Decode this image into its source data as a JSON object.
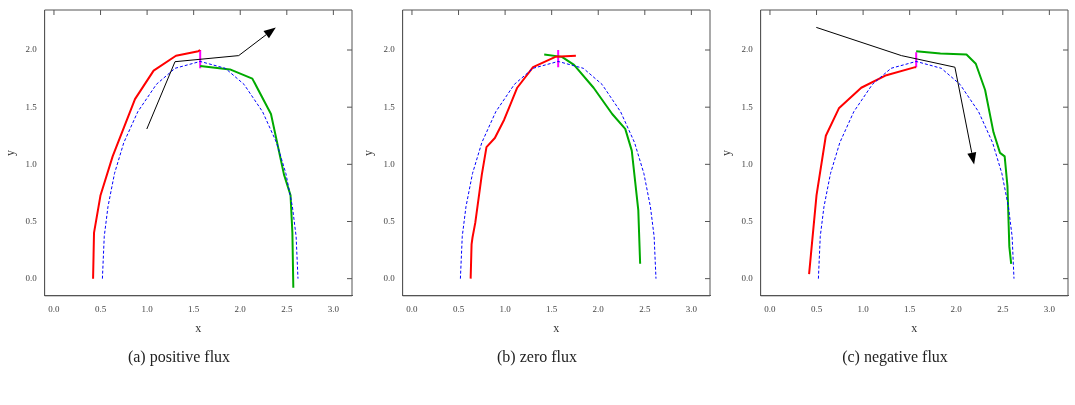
{
  "chart_data": [
    {
      "type": "line",
      "title": "(a)  positive flux",
      "xlabel": "x",
      "ylabel": "y",
      "xlim": [
        -0.1,
        3.2
      ],
      "ylim": [
        -0.15,
        2.35
      ],
      "xticks": [
        {
          "value": 0,
          "label": "0.0"
        },
        {
          "value": 0.5,
          "label": "0.5"
        },
        {
          "value": 1,
          "label": "1.0"
        },
        {
          "value": 1.5,
          "label": "1.5"
        },
        {
          "value": 2,
          "label": "2.0"
        },
        {
          "value": 2.5,
          "label": "2.5"
        },
        {
          "value": 3,
          "label": "3.0"
        }
      ],
      "yticks": [
        {
          "value": 0,
          "label": "0.0"
        },
        {
          "value": 0.5,
          "label": "0.5"
        },
        {
          "value": 1,
          "label": "1.0"
        },
        {
          "value": 1.5,
          "label": "1.5"
        },
        {
          "value": 2,
          "label": "2.0"
        }
      ],
      "grid": false,
      "legend": false,
      "series": [
        {
          "color": "#0000ff",
          "line_style": "dashed",
          "x": [
            0.52,
            0.54,
            0.58,
            0.65,
            0.75,
            0.9,
            1.1,
            1.3,
            1.57,
            1.84,
            2.04,
            2.24,
            2.39,
            2.49,
            2.56,
            2.6,
            2.62
          ],
          "values": [
            0,
            0.37,
            0.63,
            0.92,
            1.19,
            1.46,
            1.7,
            1.84,
            1.9,
            1.84,
            1.7,
            1.46,
            1.19,
            0.92,
            0.63,
            0.37,
            0
          ]
        },
        {
          "color": "#ff0000",
          "x": [
            0.42,
            0.43,
            0.5,
            0.63,
            0.87,
            1.07,
            1.31,
            1.55,
            1.57
          ],
          "values": [
            0,
            0.4,
            0.73,
            1.07,
            1.57,
            1.82,
            1.95,
            1.99,
            2.0
          ]
        },
        {
          "color": "#00aa00",
          "x": [
            1.57,
            1.89,
            2.13,
            2.33,
            2.47,
            2.54,
            2.56,
            2.57
          ],
          "values": [
            1.86,
            1.83,
            1.75,
            1.44,
            0.91,
            0.73,
            0.4,
            -0.08
          ]
        },
        {
          "color": "#ff00ff",
          "x": [
            1.57,
            1.57
          ],
          "values": [
            1.84,
            2.0
          ]
        }
      ]
    },
    {
      "type": "line",
      "title": "(b)  zero flux",
      "xlabel": "x",
      "ylabel": "y",
      "xlim": [
        -0.1,
        3.2
      ],
      "ylim": [
        -0.15,
        2.35
      ],
      "xticks": [
        {
          "value": 0,
          "label": "0.0"
        },
        {
          "value": 0.5,
          "label": "0.5"
        },
        {
          "value": 1,
          "label": "1.0"
        },
        {
          "value": 1.5,
          "label": "1.5"
        },
        {
          "value": 2,
          "label": "2.0"
        },
        {
          "value": 2.5,
          "label": "2.5"
        },
        {
          "value": 3,
          "label": "3.0"
        }
      ],
      "yticks": [
        {
          "value": 0,
          "label": "0.0"
        },
        {
          "value": 0.5,
          "label": "0.5"
        },
        {
          "value": 1,
          "label": "1.0"
        },
        {
          "value": 1.5,
          "label": "1.5"
        },
        {
          "value": 2,
          "label": "2.0"
        }
      ],
      "grid": false,
      "legend": false,
      "series": [
        {
          "color": "#0000ff",
          "line_style": "dashed",
          "x": [
            0.52,
            0.54,
            0.58,
            0.65,
            0.75,
            0.9,
            1.1,
            1.3,
            1.57,
            1.84,
            2.04,
            2.24,
            2.39,
            2.49,
            2.56,
            2.6,
            2.62
          ],
          "values": [
            0,
            0.37,
            0.63,
            0.92,
            1.19,
            1.46,
            1.7,
            1.84,
            1.9,
            1.84,
            1.7,
            1.46,
            1.19,
            0.92,
            0.63,
            0.37,
            0
          ]
        },
        {
          "color": "#ff0000",
          "x": [
            0.63,
            0.64,
            0.65,
            0.68,
            0.75,
            0.8,
            0.89,
            0.99,
            1.13,
            1.3,
            1.54,
            1.76
          ],
          "values": [
            0,
            0.3,
            0.36,
            0.49,
            0.91,
            1.15,
            1.23,
            1.39,
            1.67,
            1.85,
            1.94,
            1.95
          ]
        },
        {
          "color": "#00aa00",
          "x": [
            1.42,
            1.61,
            1.74,
            1.95,
            2.15,
            2.29,
            2.36,
            2.43,
            2.45
          ],
          "values": [
            1.96,
            1.94,
            1.87,
            1.67,
            1.44,
            1.31,
            1.12,
            0.6,
            0.13
          ]
        },
        {
          "color": "#ff00ff",
          "x": [
            1.57,
            1.57
          ],
          "values": [
            1.85,
            2.0
          ]
        }
      ]
    },
    {
      "type": "line",
      "title": "(c)  negative flux",
      "xlabel": "x",
      "ylabel": "y",
      "xlim": [
        -0.1,
        3.2
      ],
      "ylim": [
        -0.15,
        2.35
      ],
      "xticks": [
        {
          "value": 0,
          "label": "0.0"
        },
        {
          "value": 0.5,
          "label": "0.5"
        },
        {
          "value": 1,
          "label": "1.0"
        },
        {
          "value": 1.5,
          "label": "1.5"
        },
        {
          "value": 2,
          "label": "2.0"
        },
        {
          "value": 2.5,
          "label": "2.5"
        },
        {
          "value": 3,
          "label": "3.0"
        }
      ],
      "yticks": [
        {
          "value": 0,
          "label": "0.0"
        },
        {
          "value": 0.5,
          "label": "0.5"
        },
        {
          "value": 1,
          "label": "1.0"
        },
        {
          "value": 1.5,
          "label": "1.5"
        },
        {
          "value": 2,
          "label": "2.0"
        }
      ],
      "grid": false,
      "legend": false,
      "series": [
        {
          "color": "#0000ff",
          "line_style": "dashed",
          "x": [
            0.52,
            0.54,
            0.58,
            0.65,
            0.75,
            0.9,
            1.1,
            1.3,
            1.57,
            1.84,
            2.04,
            2.24,
            2.39,
            2.49,
            2.56,
            2.6,
            2.62
          ],
          "values": [
            0,
            0.37,
            0.63,
            0.92,
            1.19,
            1.46,
            1.7,
            1.84,
            1.9,
            1.84,
            1.7,
            1.46,
            1.19,
            0.92,
            0.63,
            0.37,
            0
          ]
        },
        {
          "color": "#ff0000",
          "x": [
            0.42,
            0.5,
            0.6,
            0.74,
            0.98,
            1.25,
            1.56,
            1.57
          ],
          "values": [
            0.04,
            0.73,
            1.25,
            1.49,
            1.67,
            1.78,
            1.85,
            1.85
          ]
        },
        {
          "color": "#00aa00",
          "x": [
            1.57,
            1.83,
            2.11,
            2.21,
            2.31,
            2.4,
            2.47,
            2.52,
            2.55,
            2.57,
            2.59
          ],
          "values": [
            1.99,
            1.97,
            1.96,
            1.88,
            1.65,
            1.28,
            1.1,
            1.07,
            0.81,
            0.28,
            0.13
          ]
        },
        {
          "color": "#ff00ff",
          "x": [
            1.57,
            1.57
          ],
          "values": [
            1.85,
            1.98
          ]
        }
      ]
    }
  ]
}
